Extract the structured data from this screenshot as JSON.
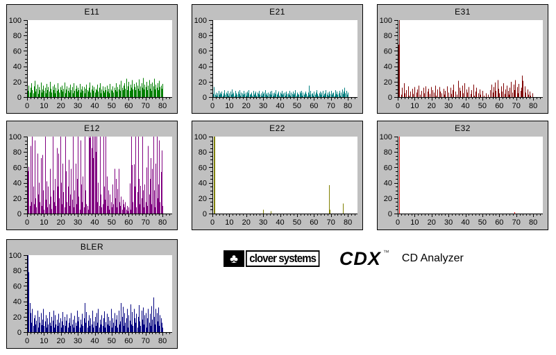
{
  "branding": {
    "company": "clover systems",
    "product": "CDX",
    "trademark": "™",
    "subtitle": "CD Analyzer",
    "logo_glyph": "♣"
  },
  "colors": {
    "panel_bg": "#c0c0c0",
    "plot_bg": "#ffffff",
    "axis": "#000000",
    "page_bg": "#ffffff"
  },
  "chart_data": [
    {
      "type": "bar",
      "title": "E11",
      "color": "#008000",
      "xlim": [
        0,
        85.7
      ],
      "ylim": [
        0,
        100
      ],
      "x_tick_labels": [
        0,
        10,
        20,
        30,
        40,
        50,
        60,
        70,
        80
      ],
      "y_tick_labels": [
        0,
        20,
        40,
        60,
        80,
        100
      ],
      "x_major": 10,
      "x_minor": 2,
      "y_major": 20,
      "y_minor": 5,
      "grid": false,
      "legend": "none",
      "x_start": 0.5,
      "dx": 0.5,
      "values": [
        8,
        15,
        6,
        12,
        18,
        9,
        5,
        14,
        21,
        7,
        11,
        16,
        4,
        13,
        9,
        19,
        6,
        10,
        15,
        8,
        12,
        5,
        17,
        9,
        13,
        7,
        20,
        11,
        6,
        14,
        9,
        16,
        5,
        12,
        8,
        18,
        10,
        6,
        13,
        9,
        15,
        7,
        11,
        19,
        5,
        10,
        14,
        8,
        12,
        6,
        16,
        9,
        13,
        5,
        18,
        8,
        11,
        15,
        7,
        12,
        9,
        17,
        6,
        10,
        14,
        8,
        13,
        5,
        11,
        16,
        9,
        7,
        12,
        19,
        6,
        10,
        15,
        8,
        13,
        6,
        11,
        9,
        16,
        7,
        12,
        18,
        5,
        10,
        14,
        8,
        6,
        13,
        9,
        15,
        7,
        11,
        5,
        17,
        10,
        8,
        14,
        6,
        12,
        9,
        18,
        7,
        13,
        10,
        16,
        8,
        21,
        12,
        9,
        15,
        18,
        11,
        24,
        9,
        14,
        20,
        8,
        16,
        12,
        22,
        10,
        17,
        13,
        9,
        19,
        15,
        11,
        23,
        8,
        14,
        18,
        12,
        25,
        10,
        16,
        13,
        20,
        9,
        15,
        22,
        11,
        17,
        8,
        19,
        14,
        24,
        10,
        16,
        12,
        18,
        9,
        21,
        13,
        15,
        11,
        17
      ]
    },
    {
      "type": "bar",
      "title": "E21",
      "color": "#008080",
      "xlim": [
        0,
        85.7
      ],
      "ylim": [
        0,
        100
      ],
      "x_tick_labels": [
        0,
        10,
        20,
        30,
        40,
        50,
        60,
        70,
        80
      ],
      "y_tick_labels": [
        0,
        20,
        40,
        60,
        80,
        100
      ],
      "x_major": 10,
      "x_minor": 2,
      "y_major": 20,
      "y_minor": 5,
      "grid": false,
      "legend": "none",
      "x_start": 0.5,
      "dx": 0.5,
      "values": [
        4,
        13,
        3,
        6,
        2,
        5,
        8,
        3,
        6,
        4,
        7,
        2,
        5,
        9,
        3,
        6,
        4,
        8,
        2,
        5,
        7,
        3,
        10,
        4,
        6,
        2,
        8,
        5,
        3,
        7,
        4,
        9,
        2,
        6,
        5,
        3,
        8,
        4,
        6,
        2,
        7,
        5,
        9,
        3,
        4,
        6,
        2,
        8,
        3,
        5,
        7,
        2,
        6,
        4,
        8,
        3,
        5,
        2,
        7,
        4,
        6,
        9,
        3,
        5,
        2,
        6,
        4,
        7,
        3,
        8,
        5,
        2,
        6,
        4,
        9,
        3,
        5,
        7,
        2,
        6,
        4,
        8,
        3,
        5,
        6,
        2,
        7,
        4,
        5,
        3,
        8,
        2,
        6,
        4,
        7,
        3,
        5,
        9,
        2,
        6,
        4,
        3,
        7,
        5,
        8,
        2,
        6,
        3,
        5,
        7,
        4,
        2,
        6,
        15,
        3,
        8,
        4,
        5,
        2,
        7,
        3,
        6,
        9,
        4,
        2,
        5,
        7,
        3,
        6,
        8,
        2,
        4,
        5,
        9,
        3,
        6,
        2,
        7,
        4,
        8,
        3,
        5,
        6,
        2,
        9,
        4,
        7,
        3,
        5,
        8,
        2,
        6,
        10,
        4,
        7,
        12,
        5,
        8,
        3,
        6
      ]
    },
    {
      "type": "bar",
      "title": "E31",
      "color": "#800000",
      "xlim": [
        0,
        85.7
      ],
      "ylim": [
        0,
        100
      ],
      "x_tick_labels": [
        0,
        10,
        20,
        30,
        40,
        50,
        60,
        70,
        80
      ],
      "y_tick_labels": [
        0,
        20,
        40,
        60,
        80,
        100
      ],
      "x_major": 10,
      "x_minor": 2,
      "y_major": 20,
      "y_minor": 5,
      "grid": false,
      "legend": "none",
      "x_start": 0.5,
      "dx": 0.5,
      "values": [
        68,
        100,
        0,
        3,
        12,
        0,
        18,
        5,
        0,
        9,
        0,
        14,
        2,
        0,
        7,
        0,
        11,
        4,
        0,
        13,
        0,
        6,
        10,
        0,
        15,
        3,
        0,
        8,
        0,
        12,
        5,
        0,
        14,
        0,
        7,
        11,
        0,
        4,
        13,
        0,
        9,
        0,
        6,
        15,
        2,
        0,
        10,
        0,
        13,
        7,
        0,
        5,
        0,
        11,
        3,
        8,
        0,
        14,
        0,
        6,
        0,
        12,
        4,
        0,
        9,
        16,
        0,
        7,
        0,
        3,
        21,
        0,
        12,
        8,
        0,
        15,
        5,
        0,
        18,
        0,
        10,
        6,
        0,
        13,
        0,
        4,
        9,
        0,
        16,
        2,
        0,
        7,
        12,
        0,
        5,
        0,
        10,
        3,
        0,
        8,
        0,
        2,
        0,
        5,
        0,
        0,
        3,
        0,
        9,
        0,
        16,
        6,
        13,
        0,
        19,
        8,
        0,
        22,
        11,
        5,
        0,
        14,
        7,
        0,
        18,
        4,
        10,
        0,
        15,
        8,
        3,
        12,
        0,
        20,
        6,
        0,
        16,
        9,
        22,
        0,
        13,
        5,
        17,
        0,
        8,
        12,
        28,
        21,
        0,
        14,
        6,
        0,
        10,
        3,
        0,
        7,
        2,
        0,
        5,
        0
      ]
    },
    {
      "type": "bar",
      "title": "E12",
      "color": "#800080",
      "xlim": [
        0,
        85.7
      ],
      "ylim": [
        0,
        100
      ],
      "x_tick_labels": [
        0,
        10,
        20,
        30,
        40,
        50,
        60,
        70,
        80
      ],
      "y_tick_labels": [
        0,
        20,
        40,
        60,
        80,
        100
      ],
      "x_major": 10,
      "x_minor": 2,
      "y_major": 20,
      "y_minor": 5,
      "grid": false,
      "legend": "none",
      "x_start": 0.5,
      "dx": 0.5,
      "values": [
        55,
        61,
        10,
        88,
        15,
        100,
        35,
        12,
        95,
        20,
        8,
        78,
        25,
        40,
        15,
        72,
        10,
        76,
        30,
        5,
        100,
        18,
        42,
        8,
        35,
        12,
        58,
        22,
        6,
        100,
        30,
        15,
        45,
        10,
        85,
        35,
        78,
        20,
        100,
        40,
        12,
        65,
        28,
        8,
        100,
        55,
        15,
        35,
        70,
        10,
        25,
        58,
        18,
        100,
        8,
        30,
        65,
        12,
        45,
        100,
        22,
        5,
        95,
        38,
        15,
        48,
        8,
        100,
        30,
        12,
        10,
        5,
        100,
        98,
        100,
        85,
        100,
        72,
        100,
        100,
        80,
        100,
        15,
        40,
        10,
        100,
        25,
        8,
        12,
        100,
        35,
        18,
        100,
        48,
        10,
        30,
        5,
        25,
        15,
        8,
        38,
        12,
        58,
        20,
        45,
        8,
        32,
        58,
        15,
        10,
        22,
        5,
        18,
        12,
        8,
        15,
        5,
        10,
        3,
        8,
        39,
        5,
        100,
        63,
        15,
        64,
        35,
        100,
        8,
        28,
        100,
        45,
        12,
        36,
        20,
        100,
        30,
        8,
        38,
        15,
        60,
        10,
        88,
        25,
        45,
        72,
        12,
        58,
        100,
        30,
        8,
        65,
        100,
        20,
        38,
        95,
        15,
        54,
        82,
        10
      ]
    },
    {
      "type": "bar",
      "title": "E22",
      "color": "#808000",
      "xlim": [
        0,
        85.7
      ],
      "ylim": [
        0,
        100
      ],
      "x_tick_labels": [
        0,
        10,
        20,
        30,
        40,
        50,
        60,
        70,
        80
      ],
      "y_tick_labels": [
        0,
        20,
        40,
        60,
        80,
        100
      ],
      "x_major": 10,
      "x_minor": 2,
      "y_major": 20,
      "y_minor": 5,
      "grid": false,
      "legend": "none",
      "points": [
        [
          0.7,
          100
        ],
        [
          1.2,
          100
        ],
        [
          30,
          5
        ],
        [
          34.5,
          3
        ],
        [
          68.8,
          37
        ],
        [
          69.3,
          5
        ],
        [
          77,
          13
        ]
      ]
    },
    {
      "type": "bar",
      "title": "E32",
      "color": "#ff0000",
      "xlim": [
        0,
        85.7
      ],
      "ylim": [
        0,
        100
      ],
      "x_tick_labels": [
        0,
        10,
        20,
        30,
        40,
        50,
        60,
        70,
        80
      ],
      "y_tick_labels": [
        0,
        20,
        40,
        60,
        80,
        100
      ],
      "x_major": 10,
      "x_minor": 2,
      "y_major": 20,
      "y_minor": 5,
      "grid": false,
      "legend": "none",
      "points": [
        [
          1,
          100
        ],
        [
          69,
          2
        ]
      ]
    },
    {
      "type": "bar",
      "title": "BLER",
      "color": "#000080",
      "xlim": [
        0,
        85.7
      ],
      "ylim": [
        0,
        100
      ],
      "x_tick_labels": [
        0,
        10,
        20,
        30,
        40,
        50,
        60,
        70,
        80
      ],
      "y_tick_labels": [
        0,
        20,
        40,
        60,
        80,
        100
      ],
      "x_major": 10,
      "x_minor": 2,
      "y_major": 20,
      "y_minor": 5,
      "grid": false,
      "legend": "none",
      "x_start": 0.5,
      "dx": 0.5,
      "values": [
        100,
        78,
        38,
        25,
        12,
        30,
        8,
        18,
        22,
        10,
        15,
        28,
        6,
        20,
        12,
        25,
        9,
        16,
        30,
        8,
        14,
        22,
        6,
        18,
        10,
        26,
        12,
        8,
        20,
        15,
        28,
        6,
        22,
        10,
        16,
        8,
        24,
        12,
        18,
        6,
        14,
        26,
        9,
        20,
        8,
        15,
        23,
        6,
        12,
        18,
        8,
        25,
        10,
        16,
        6,
        21,
        12,
        8,
        28,
        14,
        20,
        6,
        16,
        10,
        24,
        8,
        18,
        38,
        12,
        26,
        6,
        15,
        22,
        8,
        18,
        10,
        28,
        6,
        14,
        20,
        8,
        25,
        12,
        30,
        6,
        16,
        10,
        22,
        8,
        18,
        27,
        6,
        13,
        24,
        10,
        20,
        8,
        15,
        30,
        6,
        18,
        12,
        25,
        8,
        16,
        22,
        6,
        28,
        10,
        14,
        38,
        20,
        33,
        8,
        25,
        12,
        18,
        30,
        6,
        22,
        15,
        36,
        10,
        26,
        8,
        30,
        18,
        12,
        24,
        6,
        20,
        35,
        14,
        8,
        28,
        16,
        32,
        10,
        22,
        25,
        6,
        18,
        30,
        12,
        24,
        8,
        34,
        16,
        45,
        20,
        10,
        30,
        25,
        14,
        32,
        8,
        22,
        18,
        12,
        6
      ]
    }
  ]
}
